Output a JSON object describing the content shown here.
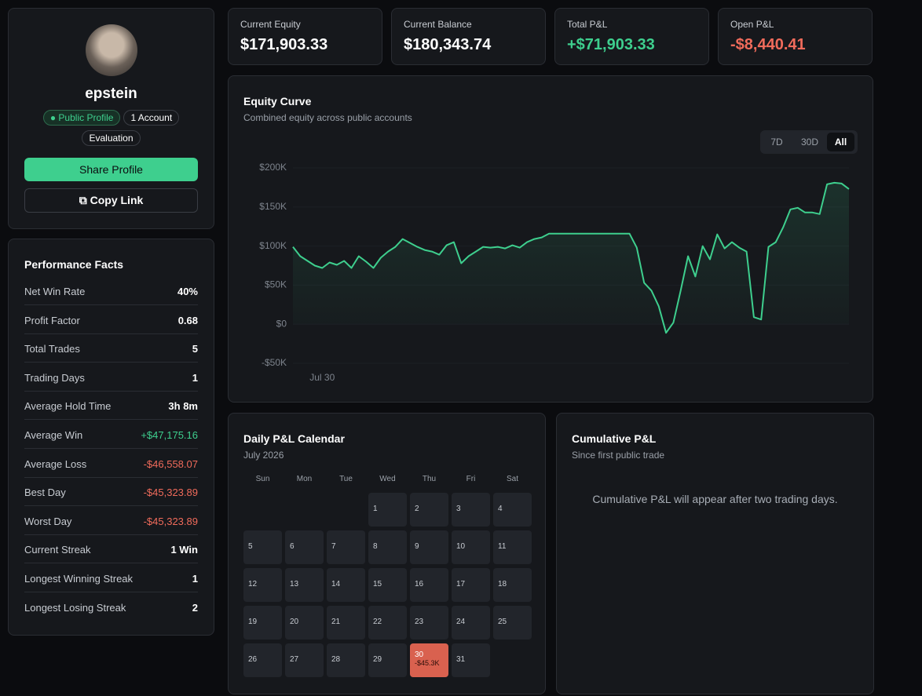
{
  "profile": {
    "name": "epstein",
    "badges": [
      "Public Profile",
      "1 Account",
      "Evaluation"
    ],
    "share": "Share Profile",
    "copy": "Copy Link"
  },
  "performance": {
    "title": "Performance Facts",
    "rows": [
      {
        "label": "Net Win Rate",
        "value": "40%"
      },
      {
        "label": "Profit Factor",
        "value": "0.68"
      },
      {
        "label": "Total Trades",
        "value": "5"
      },
      {
        "label": "Trading Days",
        "value": "1"
      },
      {
        "label": "Average Hold Time",
        "value": "3h 8m"
      },
      {
        "label": "Average Win",
        "value": "+$47,175.16",
        "color": "#3ecf8e"
      },
      {
        "label": "Average Loss",
        "value": "-$46,558.07",
        "color": "#f06b5b"
      },
      {
        "label": "Best Day",
        "value": "-$45,323.89",
        "color": "#f06b5b"
      },
      {
        "label": "Worst Day",
        "value": "-$45,323.89",
        "color": "#f06b5b"
      },
      {
        "label": "Current Streak",
        "value": "1 Win"
      },
      {
        "label": "Longest Winning Streak",
        "value": "1"
      },
      {
        "label": "Longest Losing Streak",
        "value": "2"
      }
    ]
  },
  "stats": [
    {
      "label": "Current Equity",
      "value": "$171,903.33",
      "color": "#ffffff"
    },
    {
      "label": "Current Balance",
      "value": "$180,343.74",
      "color": "#ffffff"
    },
    {
      "label": "Total P&L",
      "value": "+$71,903.33",
      "color": "#3ecf8e"
    },
    {
      "label": "Open P&L",
      "value": "-$8,440.41",
      "color": "#f06b5b"
    }
  ],
  "chart_data": {
    "type": "line",
    "title": "Equity Curve",
    "subtitle": "Combined equity across public accounts",
    "ranges": [
      "7D",
      "30D",
      "All"
    ],
    "active_range": 2,
    "color": "#3ecf8e",
    "ylim": [
      -50000,
      200000
    ],
    "yticks": [
      {
        "value": 200000,
        "label": "$200K"
      },
      {
        "value": 150000,
        "label": "$150K"
      },
      {
        "value": 100000,
        "label": "$100K"
      },
      {
        "value": 50000,
        "label": "$50K"
      },
      {
        "value": 0,
        "label": "$0"
      },
      {
        "value": -50000,
        "label": "-$50K"
      }
    ],
    "categories": [
      null,
      null,
      null,
      null,
      "Jul 30",
      null,
      null,
      null,
      null,
      null,
      null,
      null,
      null,
      null,
      null,
      null,
      null,
      null,
      null,
      null,
      null,
      null,
      null,
      null,
      null,
      null,
      null,
      null,
      null,
      null,
      null,
      null,
      null,
      null,
      null,
      null,
      null,
      null,
      null,
      null,
      null,
      null,
      null,
      null,
      null,
      null,
      null,
      null,
      null,
      null,
      null,
      null,
      null,
      null,
      null,
      null,
      null,
      null,
      null,
      null,
      null,
      null,
      null,
      null,
      null,
      null,
      null,
      null,
      null,
      null,
      null,
      null,
      null,
      null,
      null,
      null,
      null
    ],
    "values": [
      99000,
      87000,
      81000,
      75000,
      72000,
      79000,
      76000,
      81000,
      72000,
      87000,
      80000,
      72000,
      85000,
      93000,
      99000,
      109000,
      104000,
      99000,
      95000,
      93000,
      89000,
      101000,
      105000,
      78000,
      87000,
      93000,
      99000,
      98000,
      99000,
      97000,
      101000,
      98000,
      105000,
      109000,
      111000,
      116000,
      116000,
      116000,
      116000,
      116000,
      116000,
      116000,
      116000,
      116000,
      116000,
      116000,
      116000,
      98000,
      53000,
      43000,
      23000,
      -11000,
      2000,
      43000,
      87000,
      61000,
      100000,
      83000,
      115000,
      97000,
      105000,
      98000,
      93000,
      9000,
      6000,
      99000,
      105000,
      124000,
      147000,
      149000,
      143000,
      143000,
      141000,
      179000,
      181000,
      180000,
      173000
    ]
  },
  "calendar": {
    "title": "Daily P&L Calendar",
    "month": "July 2026",
    "weekdays": [
      "Sun",
      "Mon",
      "Tue",
      "Wed",
      "Thu",
      "Fri",
      "Sat"
    ],
    "days": [
      1,
      2,
      3,
      4,
      5,
      6,
      7,
      8,
      9,
      10,
      11,
      12,
      13,
      14,
      15,
      16,
      17,
      18,
      19,
      20,
      21,
      22,
      23,
      24,
      25,
      26,
      27,
      28,
      29,
      {
        "day": 30,
        "pnl": "-$45.3K"
      },
      31
    ]
  },
  "cumulative": {
    "title": "Cumulative P&L",
    "subtitle": "Since first public trade",
    "empty": "Cumulative P&L will appear after two trading days."
  }
}
